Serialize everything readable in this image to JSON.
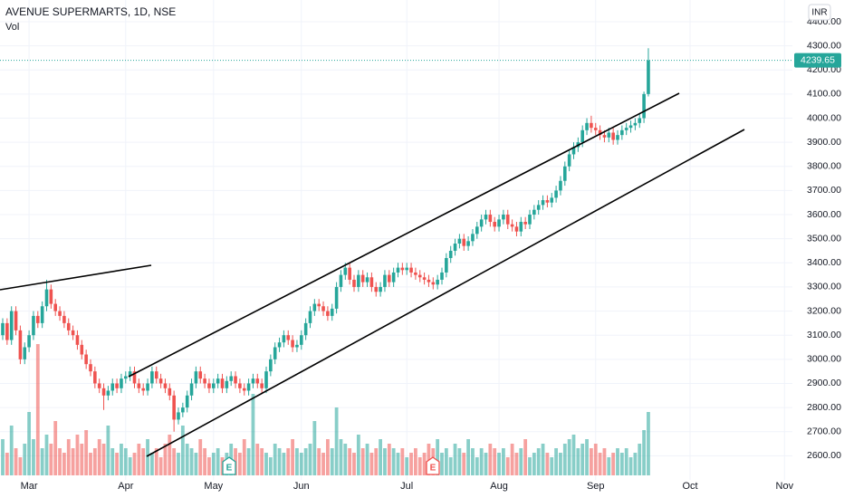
{
  "chart_data": {
    "type": "candlestick",
    "title": "AVENUE SUPERMARTS, 1D, NSE",
    "indicator": "Vol",
    "currency": "INR",
    "categories": [
      null,
      null,
      null,
      null,
      null,
      null,
      "Mar",
      null,
      null,
      null,
      null,
      null,
      null,
      null,
      null,
      null,
      null,
      null,
      null,
      null,
      null,
      null,
      null,
      null,
      null,
      null,
      null,
      null,
      "Apr",
      null,
      null,
      null,
      null,
      null,
      null,
      null,
      null,
      null,
      null,
      null,
      null,
      null,
      null,
      null,
      null,
      null,
      null,
      null,
      "May",
      null,
      null,
      null,
      null,
      null,
      null,
      null,
      null,
      null,
      null,
      null,
      null,
      null,
      null,
      null,
      null,
      null,
      null,
      null,
      "Jun",
      null,
      null,
      null,
      null,
      null,
      null,
      null,
      null,
      null,
      null,
      null,
      null,
      null,
      null,
      null,
      null,
      null,
      null,
      null,
      null,
      null,
      null,
      null,
      "Jul",
      null,
      null,
      null,
      null,
      null,
      null,
      null,
      null,
      null,
      null,
      null,
      null,
      null,
      null,
      null,
      null,
      null,
      null,
      null,
      null,
      "Aug",
      null,
      null,
      null,
      null,
      null,
      null,
      null,
      null,
      null,
      null,
      null,
      null,
      null,
      null,
      null,
      null,
      null,
      null,
      null,
      null,
      null,
      "Sep",
      null,
      null,
      null,
      null,
      null,
      null,
      null,
      null,
      null,
      null,
      null,
      null
    ],
    "months_ahead": [
      "Oct",
      "Nov"
    ],
    "open": [
      3100,
      3150,
      3080,
      3200,
      3120,
      3000,
      3050,
      3100,
      3180,
      3150,
      3220,
      3290,
      3230,
      3200,
      3180,
      3150,
      3120,
      3100,
      3060,
      3020,
      2980,
      2950,
      2900,
      2880,
      2850,
      2870,
      2900,
      2880,
      2920,
      2930,
      2950,
      2900,
      2880,
      2870,
      2900,
      2950,
      2920,
      2900,
      2880,
      2850,
      2750,
      2780,
      2800,
      2850,
      2900,
      2950,
      2920,
      2900,
      2880,
      2900,
      2920,
      2880,
      2910,
      2930,
      2900,
      2880,
      2870,
      2900,
      2920,
      2900,
      2880,
      2950,
      3000,
      3050,
      3070,
      3100,
      3080,
      3050,
      3060,
      3100,
      3150,
      3200,
      3230,
      3220,
      3200,
      3180,
      3210,
      3300,
      3350,
      3380,
      3330,
      3300,
      3350,
      3320,
      3340,
      3300,
      3280,
      3300,
      3350,
      3320,
      3360,
      3380,
      3370,
      3380,
      3360,
      3350,
      3340,
      3330,
      3320,
      3310,
      3330,
      3360,
      3420,
      3450,
      3480,
      3500,
      3470,
      3490,
      3520,
      3550,
      3580,
      3600,
      3570,
      3550,
      3580,
      3600,
      3560,
      3550,
      3530,
      3570,
      3560,
      3600,
      3620,
      3640,
      3660,
      3650,
      3670,
      3700,
      3740,
      3800,
      3850,
      3880,
      3900,
      3950,
      3980,
      3960,
      3950,
      3930,
      3920,
      3940,
      3910,
      3930,
      3950,
      3960,
      3970,
      3980,
      4000,
      4100
    ],
    "high": [
      3170,
      3170,
      3220,
      3220,
      3140,
      3070,
      3120,
      3200,
      3200,
      3240,
      3330,
      3310,
      3250,
      3220,
      3200,
      3170,
      3140,
      3120,
      3080,
      3040,
      3000,
      2970,
      2920,
      2900,
      2890,
      2920,
      2920,
      2940,
      2950,
      2970,
      2970,
      2920,
      2900,
      2920,
      2970,
      2970,
      2940,
      2920,
      2900,
      2870,
      2800,
      2820,
      2870,
      2920,
      2970,
      2970,
      2940,
      2920,
      2920,
      2940,
      2940,
      2930,
      2950,
      2950,
      2920,
      2900,
      2920,
      2940,
      2940,
      2920,
      2970,
      3020,
      3070,
      3090,
      3120,
      3120,
      3100,
      3080,
      3120,
      3170,
      3220,
      3250,
      3250,
      3240,
      3220,
      3230,
      3320,
      3370,
      3400,
      3400,
      3350,
      3370,
      3370,
      3360,
      3360,
      3320,
      3320,
      3370,
      3370,
      3380,
      3400,
      3400,
      3400,
      3400,
      3380,
      3370,
      3360,
      3350,
      3340,
      3350,
      3380,
      3440,
      3470,
      3500,
      3520,
      3520,
      3510,
      3540,
      3570,
      3600,
      3620,
      3620,
      3590,
      3600,
      3620,
      3620,
      3580,
      3570,
      3590,
      3590,
      3620,
      3640,
      3660,
      3680,
      3680,
      3690,
      3720,
      3760,
      3820,
      3870,
      3900,
      3920,
      3970,
      4000,
      4010,
      3980,
      3970,
      3950,
      3960,
      3960,
      3950,
      3970,
      3980,
      3990,
      4000,
      4020,
      4110,
      4290
    ],
    "low": [
      3080,
      3060,
      3060,
      3100,
      2980,
      2980,
      3030,
      3080,
      3130,
      3130,
      3200,
      3210,
      3180,
      3160,
      3130,
      3100,
      3080,
      3040,
      3000,
      2960,
      2930,
      2880,
      2860,
      2790,
      2830,
      2850,
      2860,
      2860,
      2900,
      2910,
      2880,
      2860,
      2850,
      2850,
      2880,
      2900,
      2880,
      2860,
      2830,
      2700,
      2730,
      2760,
      2780,
      2830,
      2880,
      2900,
      2880,
      2860,
      2860,
      2880,
      2860,
      2860,
      2890,
      2880,
      2860,
      2850,
      2850,
      2880,
      2880,
      2860,
      2860,
      2930,
      2980,
      3030,
      3050,
      3060,
      3030,
      3030,
      3040,
      3080,
      3130,
      3180,
      3200,
      3180,
      3160,
      3160,
      3190,
      3280,
      3330,
      3310,
      3280,
      3280,
      3300,
      3300,
      3280,
      3260,
      3260,
      3280,
      3300,
      3300,
      3340,
      3350,
      3350,
      3340,
      3330,
      3320,
      3310,
      3300,
      3290,
      3290,
      3310,
      3340,
      3400,
      3430,
      3460,
      3450,
      3450,
      3470,
      3500,
      3530,
      3560,
      3550,
      3530,
      3530,
      3560,
      3540,
      3530,
      3510,
      3510,
      3540,
      3540,
      3580,
      3600,
      3620,
      3630,
      3630,
      3650,
      3680,
      3720,
      3780,
      3830,
      3860,
      3880,
      3930,
      3940,
      3930,
      3910,
      3900,
      3900,
      3890,
      3890,
      3910,
      3930,
      3940,
      3950,
      3960,
      3980,
      4090
    ],
    "close": [
      3150,
      3080,
      3200,
      3120,
      3000,
      3050,
      3100,
      3180,
      3150,
      3220,
      3290,
      3230,
      3200,
      3180,
      3150,
      3120,
      3100,
      3060,
      3020,
      2980,
      2950,
      2900,
      2880,
      2850,
      2870,
      2900,
      2880,
      2920,
      2930,
      2950,
      2900,
      2880,
      2870,
      2900,
      2950,
      2920,
      2900,
      2880,
      2850,
      2750,
      2780,
      2800,
      2850,
      2900,
      2950,
      2920,
      2900,
      2880,
      2900,
      2920,
      2880,
      2910,
      2930,
      2900,
      2880,
      2870,
      2900,
      2920,
      2900,
      2880,
      2950,
      3000,
      3050,
      3070,
      3100,
      3080,
      3050,
      3060,
      3100,
      3150,
      3200,
      3230,
      3220,
      3200,
      3180,
      3210,
      3300,
      3350,
      3380,
      3330,
      3300,
      3350,
      3320,
      3340,
      3300,
      3280,
      3300,
      3350,
      3320,
      3360,
      3380,
      3370,
      3380,
      3360,
      3350,
      3340,
      3330,
      3320,
      3310,
      3330,
      3360,
      3420,
      3450,
      3480,
      3500,
      3470,
      3490,
      3520,
      3550,
      3580,
      3600,
      3570,
      3550,
      3580,
      3600,
      3560,
      3550,
      3530,
      3570,
      3560,
      3600,
      3620,
      3640,
      3660,
      3650,
      3670,
      3700,
      3740,
      3800,
      3850,
      3880,
      3900,
      3950,
      3980,
      3960,
      3950,
      3930,
      3920,
      3940,
      3910,
      3930,
      3950,
      3960,
      3970,
      3980,
      4000,
      4100,
      4239.65
    ],
    "volume": [
      40,
      25,
      55,
      30,
      20,
      35,
      70,
      40,
      145,
      30,
      45,
      35,
      60,
      30,
      25,
      40,
      30,
      45,
      35,
      50,
      25,
      30,
      40,
      35,
      55,
      30,
      25,
      35,
      30,
      20,
      25,
      35,
      30,
      40,
      25,
      30,
      20,
      35,
      45,
      30,
      25,
      55,
      35,
      30,
      25,
      40,
      30,
      20,
      25,
      30,
      20,
      25,
      35,
      30,
      25,
      40,
      30,
      90,
      35,
      30,
      25,
      20,
      35,
      30,
      25,
      30,
      40,
      30,
      25,
      30,
      35,
      60,
      30,
      25,
      40,
      30,
      75,
      40,
      35,
      30,
      25,
      45,
      30,
      35,
      25,
      30,
      40,
      30,
      35,
      30,
      25,
      30,
      20,
      25,
      30,
      20,
      25,
      35,
      30,
      40,
      25,
      30,
      20,
      35,
      30,
      25,
      40,
      30,
      20,
      30,
      25,
      35,
      30,
      25,
      30,
      20,
      35,
      25,
      30,
      40,
      20,
      25,
      30,
      35,
      25,
      20,
      30,
      25,
      35,
      40,
      45,
      30,
      35,
      40,
      30,
      35,
      25,
      30,
      20,
      25,
      30,
      25,
      30,
      20,
      25,
      35,
      50,
      70
    ],
    "up_color": "#26a69a",
    "down_color": "#ef5350",
    "earnings": [
      "E",
      "E"
    ],
    "ylim": [
      2500,
      4490
    ],
    "yticks": [
      {
        "value": 2600,
        "label": "2600.00"
      },
      {
        "value": 2700,
        "label": "2700.00"
      },
      {
        "value": 2800,
        "label": "2800.00"
      },
      {
        "value": 2900,
        "label": "2900.00"
      },
      {
        "value": 3000,
        "label": "3000.00"
      },
      {
        "value": 3100,
        "label": "3100.00"
      },
      {
        "value": 3200,
        "label": "3200.00"
      },
      {
        "value": 3300,
        "label": "3300.00"
      },
      {
        "value": 3400,
        "label": "3400.00"
      },
      {
        "value": 3500,
        "label": "3500.00"
      },
      {
        "value": 3600,
        "label": "3600.00"
      },
      {
        "value": 3700,
        "label": "3700.00"
      },
      {
        "value": 3800,
        "label": "3800.00"
      },
      {
        "value": 3900,
        "label": "3900.00"
      },
      {
        "value": 4000,
        "label": "4000.00"
      },
      {
        "value": 4100,
        "label": "4100.00"
      },
      {
        "value": 4200,
        "label": "4200.00"
      },
      {
        "value": 4300,
        "label": "4300.00"
      },
      {
        "value": 4400,
        "label": "4400.00"
      }
    ],
    "grid": true
  }
}
